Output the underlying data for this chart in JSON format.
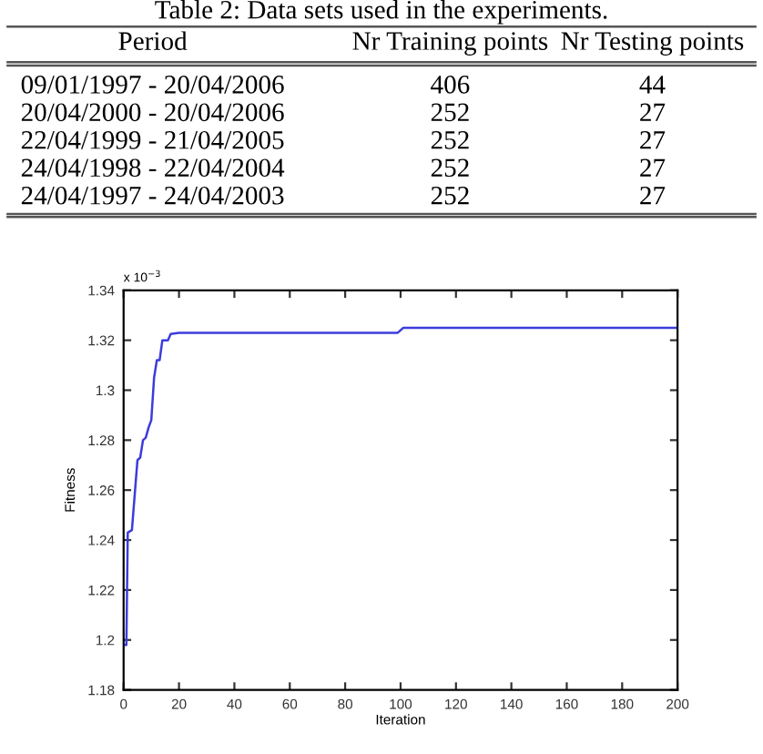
{
  "chart_data": [
    {
      "type": "other",
      "title": "Table 2: Data sets used in the experiments.",
      "categories": [
        "Period",
        "Nr Training points",
        "Nr Testing points"
      ],
      "annotations": [
        "09/01/1997 - 20/04/2006",
        "406",
        "44",
        "20/04/2000 - 20/04/2006",
        "252",
        "27",
        "22/04/1999 - 21/04/2005",
        "252",
        "27",
        "24/04/1998 - 22/04/2004",
        "252",
        "27",
        "24/04/1997 - 24/04/2003",
        "252",
        "27"
      ]
    },
    {
      "type": "line",
      "xlabel": "Iteration",
      "ylabel": "Fitness",
      "annotations": [
        "x 10$^{−3}$"
      ],
      "x": [
        0,
        1,
        1.5,
        3,
        4,
        5,
        6,
        7,
        8,
        9,
        10,
        11,
        12,
        13,
        14,
        16,
        17,
        20,
        99,
        101,
        200
      ],
      "series": [
        {
          "color": "#3c3cdc",
          "values": [
            1.198,
            1.198,
            1.243,
            1.244,
            1.258,
            1.272,
            1.273,
            1.28,
            1.281,
            1.285,
            1.288,
            1.305,
            1.312,
            1.312,
            1.32,
            1.32,
            1.3225,
            1.323,
            1.323,
            1.325,
            1.325
          ]
        }
      ],
      "xlim": [
        0,
        200
      ],
      "xticks": [
        0,
        20,
        40,
        60,
        80,
        100,
        120,
        140,
        160,
        180,
        200
      ],
      "ylim": [
        1.18,
        1.34
      ],
      "yticks": [
        1.18,
        1.2,
        1.22,
        1.24,
        1.26,
        1.28,
        1.3,
        1.32,
        1.34
      ],
      "grid": false,
      "legend": false,
      "marker": "none",
      "line_style": "solid"
    }
  ]
}
